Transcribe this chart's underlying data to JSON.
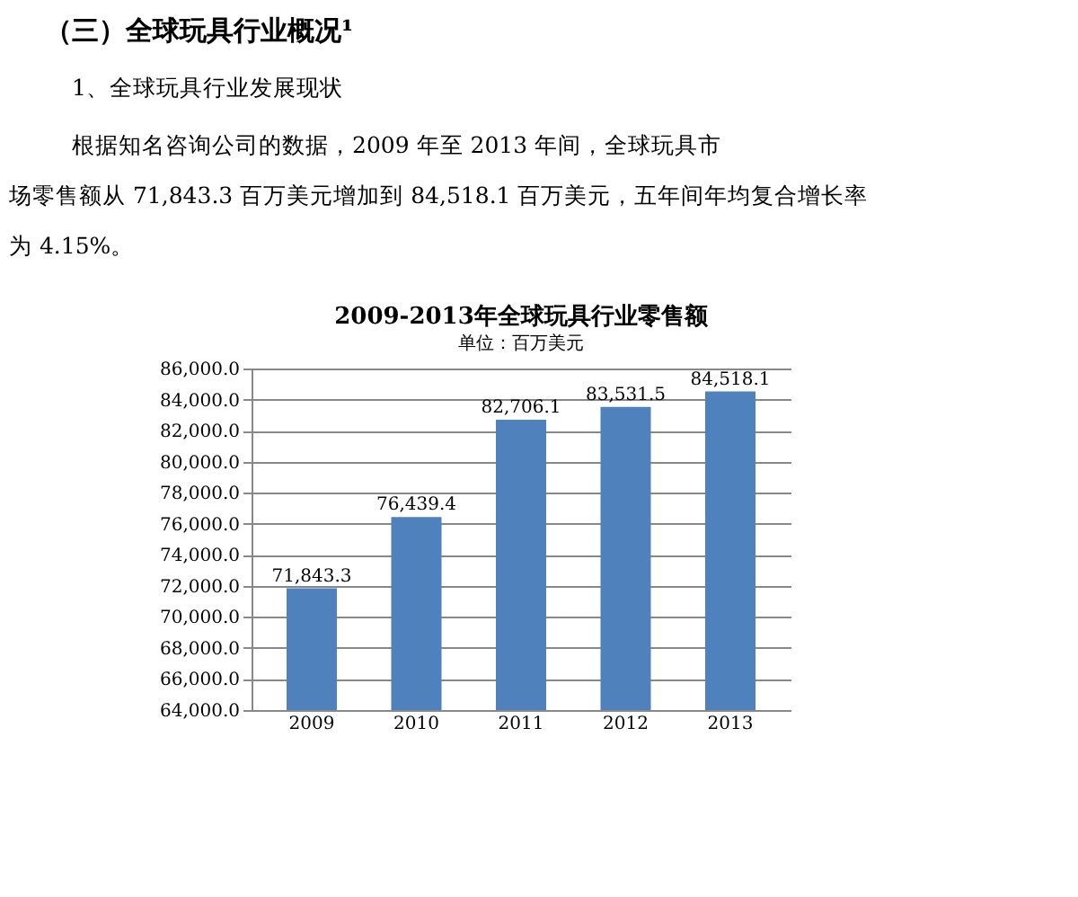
{
  "chart_data": {
    "type": "bar",
    "title": "2009-2013年全球玩具行业零售额",
    "subtitle": "单位：百万美元",
    "annotations": [
      "（三）全球玩具行业概况¹",
      "1、全球玩具行业发展现状",
      "根据知名咨询公司的数据，2009 年至 2013 年间，全球玩具市",
      "场零售额从 71,843.3 百万美元增加到 84,518.1 百万美元，五年间年均复合增长率",
      "为 4.15%。"
    ],
    "categories": [
      "2009",
      "2010",
      "2011",
      "2012",
      "2013"
    ],
    "values": [
      71843.3,
      76439.4,
      82706.1,
      83531.5,
      84518.1
    ],
    "value_labels": [
      "71,843.3",
      "76,439.4",
      "82,706.1",
      "83,531.5",
      "84,518.1"
    ],
    "color": "#4f81bd",
    "ylim": [
      64000,
      86000
    ],
    "yticks": [
      {
        "value": 64000,
        "label": "64,000.0"
      },
      {
        "value": 66000,
        "label": "66,000.0"
      },
      {
        "value": 68000,
        "label": "68,000.0"
      },
      {
        "value": 70000,
        "label": "70,000.0"
      },
      {
        "value": 72000,
        "label": "72,000.0"
      },
      {
        "value": 74000,
        "label": "74,000.0"
      },
      {
        "value": 76000,
        "label": "76,000.0"
      },
      {
        "value": 78000,
        "label": "78,000.0"
      },
      {
        "value": 80000,
        "label": "80,000.0"
      },
      {
        "value": 82000,
        "label": "82,000.0"
      },
      {
        "value": 84000,
        "label": "84,000.0"
      },
      {
        "value": 86000,
        "label": "86,000.0"
      }
    ],
    "grid": "y"
  }
}
